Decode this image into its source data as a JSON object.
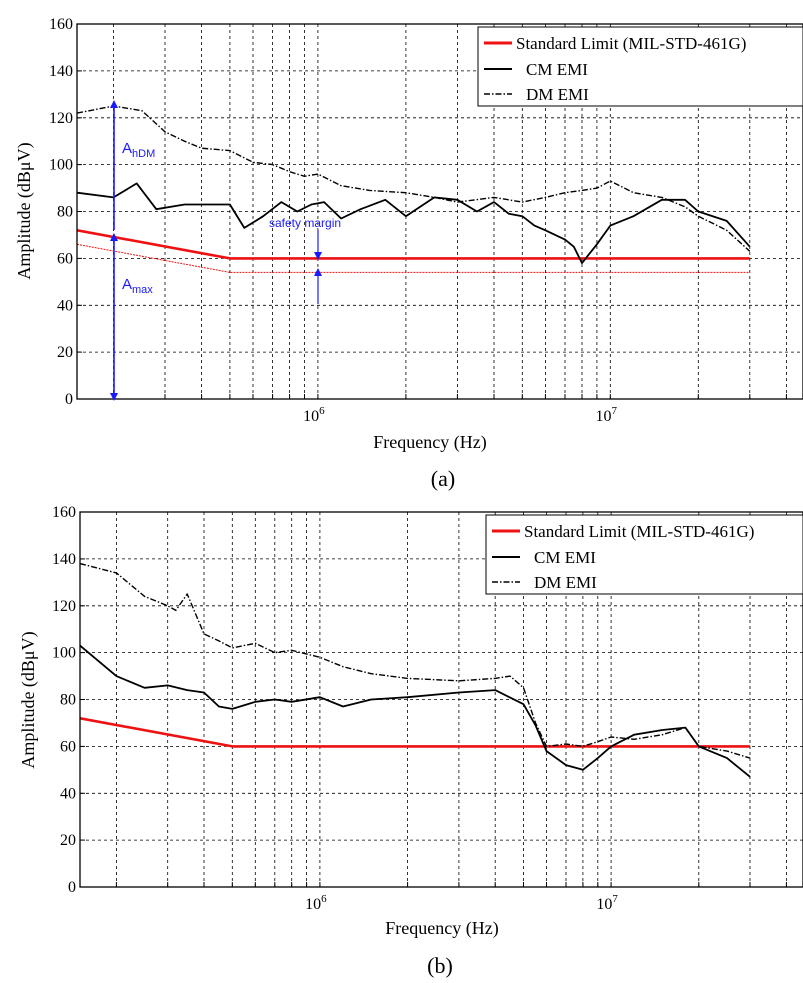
{
  "colors": {
    "limit": "#ee1111",
    "cm": "#000000",
    "dm": "#000000",
    "annotation": "#1a1aff"
  },
  "chart_data": [
    {
      "id": "a",
      "type": "line",
      "caption": "(a)",
      "xlabel": "Frequency (Hz)",
      "ylabel": "Amplitude (dBμV)",
      "xscale": "log",
      "xlim": [
        150000,
        30000000
      ],
      "ylim": [
        0,
        160
      ],
      "yticks": [
        0,
        20,
        40,
        60,
        80,
        100,
        120,
        140,
        160
      ],
      "xticks_labeled": [
        {
          "value": 1000000,
          "base": "10",
          "exp": "6"
        },
        {
          "value": 10000000,
          "base": "10",
          "exp": "7"
        }
      ],
      "grid": true,
      "legend_position": "top-right",
      "series": [
        {
          "name": "Standard Limit (MIL-STD-461G)",
          "style": "solid-red",
          "x": [
            150000,
            500000,
            30000000
          ],
          "y": [
            72,
            60,
            60
          ]
        },
        {
          "name": "",
          "style": "thin-red",
          "x": [
            150000,
            500000,
            30000000
          ],
          "y": [
            66,
            54,
            54
          ]
        },
        {
          "name": "CM EMI",
          "style": "solid",
          "x": [
            150000,
            200000,
            240000,
            280000,
            350000,
            450000,
            500000,
            560000,
            650000,
            750000,
            850000,
            950000,
            1050000,
            1200000,
            1400000,
            1700000,
            2000000,
            2500000,
            3000000,
            3500000,
            4000000,
            4500000,
            5000000,
            5500000,
            6000000,
            7000000,
            7500000,
            8000000,
            9000000,
            10000000,
            12000000,
            15000000,
            18000000,
            20000000,
            25000000,
            30000000
          ],
          "y": [
            88,
            86,
            92,
            81,
            83,
            83,
            83,
            73,
            78,
            84,
            80,
            83,
            84,
            77,
            81,
            85,
            78,
            86,
            85,
            80,
            84,
            79,
            78,
            74,
            72,
            68,
            65,
            58,
            66,
            74,
            78,
            85,
            85,
            80,
            76,
            65
          ]
        },
        {
          "name": "DM EMI",
          "style": "dash-dot",
          "x": [
            150000,
            200000,
            250000,
            300000,
            350000,
            400000,
            500000,
            600000,
            700000,
            800000,
            900000,
            1000000,
            1200000,
            1500000,
            2000000,
            2500000,
            3000000,
            4000000,
            5000000,
            6000000,
            7000000,
            8000000,
            9000000,
            10000000,
            12000000,
            15000000,
            18000000,
            20000000,
            25000000,
            30000000
          ],
          "y": [
            122,
            125,
            123,
            114,
            110,
            107,
            106,
            101,
            100,
            97,
            95,
            96,
            91,
            89,
            88,
            86,
            84,
            86,
            84,
            86,
            88,
            89,
            90,
            93,
            88,
            86,
            82,
            78,
            72,
            63
          ]
        }
      ],
      "annotations": {
        "a_hdm": {
          "base": "A",
          "sub": "hDM"
        },
        "a_max": {
          "base": "A",
          "sub": "max"
        },
        "safety_margin": "safety margin"
      }
    },
    {
      "id": "b",
      "type": "line",
      "caption": "(b)",
      "xlabel": "Frequency (Hz)",
      "ylabel": "Amplitude (dBμV)",
      "xscale": "log",
      "xlim": [
        150000,
        30000000
      ],
      "ylim": [
        0,
        160
      ],
      "yticks": [
        0,
        20,
        40,
        60,
        80,
        100,
        120,
        140,
        160
      ],
      "xticks_labeled": [
        {
          "value": 1000000,
          "base": "10",
          "exp": "6"
        },
        {
          "value": 10000000,
          "base": "10",
          "exp": "7"
        }
      ],
      "grid": true,
      "legend_position": "top-right",
      "series": [
        {
          "name": "Standard Limit (MIL-STD-461G)",
          "style": "solid-red",
          "x": [
            150000,
            500000,
            30000000
          ],
          "y": [
            72,
            60,
            60
          ]
        },
        {
          "name": "CM EMI",
          "style": "solid",
          "x": [
            150000,
            200000,
            250000,
            300000,
            350000,
            400000,
            450000,
            500000,
            600000,
            700000,
            800000,
            1000000,
            1200000,
            1500000,
            2000000,
            3000000,
            4000000,
            5000000,
            5500000,
            6000000,
            7000000,
            8000000,
            9000000,
            10000000,
            12000000,
            15000000,
            18000000,
            20000000,
            25000000,
            30000000
          ],
          "y": [
            103,
            90,
            85,
            86,
            84,
            83,
            77,
            76,
            79,
            80,
            79,
            81,
            77,
            80,
            81,
            83,
            84,
            78,
            69,
            58,
            52,
            50,
            55,
            60,
            65,
            67,
            68,
            60,
            55,
            47
          ]
        },
        {
          "name": "DM EMI",
          "style": "dash-dot",
          "x": [
            150000,
            200000,
            250000,
            300000,
            320000,
            350000,
            400000,
            450000,
            500000,
            600000,
            700000,
            800000,
            1000000,
            1200000,
            1500000,
            2000000,
            3000000,
            4000000,
            4500000,
            5000000,
            5500000,
            6000000,
            7000000,
            8000000,
            9000000,
            10000000,
            12000000,
            15000000,
            18000000,
            20000000,
            25000000,
            30000000
          ],
          "y": [
            138,
            134,
            124,
            120,
            118,
            125,
            108,
            105,
            102,
            104,
            100,
            101,
            98,
            94,
            91,
            89,
            88,
            89,
            90,
            85,
            70,
            60,
            61,
            60,
            62,
            64,
            63,
            65,
            68,
            60,
            58,
            55
          ]
        }
      ]
    }
  ]
}
